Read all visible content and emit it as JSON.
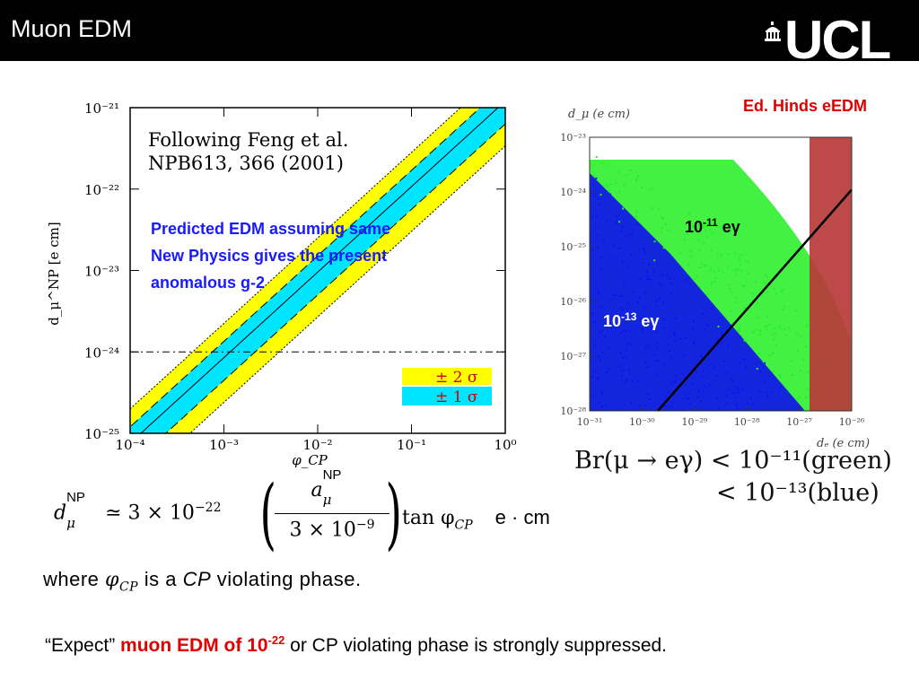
{
  "slide": {
    "title": "Muon EDM",
    "logo": "UCL",
    "logo_icon": "ucl-dome-icon"
  },
  "left_plot": {
    "note_line1": "Following Feng et al.",
    "note_line2": "NPB613, 366 (2001)",
    "annotation": [
      "Predicted EDM assuming same",
      "New Physics gives the present",
      "anomalous g-2"
    ],
    "annotation_color": "#1a1aff",
    "legend": [
      {
        "label": "± 2 σ",
        "color": "#ffff00",
        "text_color": "#d00000"
      },
      {
        "label": "± 1 σ",
        "color": "#00e5ff",
        "text_color": "#d00000"
      }
    ],
    "chart_data": {
      "type": "line",
      "xscale": "log",
      "yscale": "log",
      "xlim": [
        0.0001,
        1.0
      ],
      "ylim": [
        1e-25,
        1e-21
      ],
      "xticks": [
        "10⁻⁴",
        "10⁻³",
        "10⁻²",
        "10⁻¹",
        "10⁰"
      ],
      "yticks": [
        "10⁻²¹",
        "10⁻²²",
        "10⁻²³",
        "10⁻²⁴",
        "10⁻²⁵"
      ],
      "xlabel": "φ_CP",
      "ylabel": "d_μ^NP [e cm]",
      "series": [
        {
          "name": "central",
          "x": [
            0.00017,
            0.001,
            0.01,
            0.1,
            0.5,
            1.0
          ],
          "y": [
            1e-25,
            1e-24,
            1.1e-23,
            1.3e-22,
            1e-21,
            1e-21
          ]
        }
      ],
      "hline": 1e-24
    }
  },
  "right_plot": {
    "source_label": "Ed. Hinds eEDM",
    "label_green": {
      "base": "10",
      "exp": "-11",
      "unit": " eγ"
    },
    "label_blue": {
      "base": "10",
      "exp": "-13",
      "unit": " eγ"
    },
    "colors": {
      "green": "#22ee22",
      "blue": "#1010ee",
      "band": "#b93a3a"
    },
    "chart_data": {
      "type": "scatter",
      "xscale": "log",
      "yscale": "log",
      "xlim": [
        1e-31,
        1e-26
      ],
      "ylim": [
        1e-28,
        1e-23
      ],
      "xticks": [
        "10⁻³¹",
        "10⁻³⁰",
        "10⁻²⁹",
        "10⁻²⁸",
        "10⁻²⁷",
        "10⁻²⁶"
      ],
      "yticks": [
        "10⁻²³",
        "10⁻²⁴",
        "10⁻²⁵",
        "10⁻²⁶",
        "10⁻²⁷",
        "10⁻²⁸"
      ],
      "xlabel": "dₑ (e cm)",
      "ylabel": "d_μ (e cm)",
      "series": [
        {
          "name": "green",
          "description": "Br < 1e-11"
        },
        {
          "name": "blue",
          "description": "Br < 1e-13"
        }
      ],
      "diagonal": {
        "x": [
          2e-30,
          1e-26
        ],
        "y": [
          1e-28,
          1.1e-24
        ]
      },
      "excluded_band_x": [
        3e-27,
        1e-26
      ]
    },
    "br_line1": "Br(μ → eγ) < 10⁻¹¹(green)",
    "br_line2": "< 10⁻¹³(blue)"
  },
  "formula": {
    "lhs": "d",
    "lhs_sup": "NP",
    "lhs_sub": "μ",
    "approx": "≃ 3 × 10",
    "exp": "−22",
    "num": "a",
    "num_sup": "NP",
    "num_sub": "μ",
    "den": "3 × 10",
    "den_exp": "−9",
    "tan": "tan φ",
    "tan_sub": "CP",
    "unit": "e · cm"
  },
  "where_line": {
    "pre": "where ",
    "phi": "φ",
    "phi_sub": "CP",
    "mid": " is a ",
    "cp": "CP",
    "post": " violating phase."
  },
  "conclusion": {
    "pre": "“Expect”  ",
    "highlight": "muon EDM of 10",
    "highlight_exp": "-22",
    "post": " or CP violating phase is strongly suppressed."
  }
}
